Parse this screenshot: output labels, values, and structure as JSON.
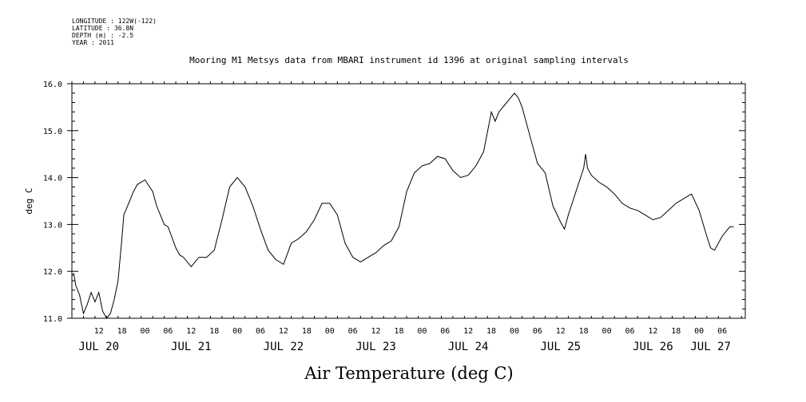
{
  "chart_data": {
    "type": "line",
    "title": "Mooring M1 Metsys data from MBARI instrument id 1396 at original sampling intervals",
    "metadata_lines": [
      "LONGITUDE : 122W(-122)",
      "LATITUDE : 36.8N",
      "DEPTH (m) : -2.5",
      "YEAR : 2011"
    ],
    "xlabel": "Air Temperature (deg C)",
    "ylabel": "deg C",
    "xlim": [
      "2011-07-20 05:00",
      "2011-07-27 12:00"
    ],
    "ylim": [
      11.0,
      16.0
    ],
    "y_ticks": [
      "11.0",
      "12.0",
      "13.0",
      "14.0",
      "15.0",
      "16.0"
    ],
    "x_hour_labels": [
      {
        "t": "2011-07-20 12:00",
        "label": "12"
      },
      {
        "t": "2011-07-20 18:00",
        "label": "18"
      },
      {
        "t": "2011-07-21 00:00",
        "label": "00"
      },
      {
        "t": "2011-07-21 06:00",
        "label": "06"
      },
      {
        "t": "2011-07-21 12:00",
        "label": "12"
      },
      {
        "t": "2011-07-21 18:00",
        "label": "18"
      },
      {
        "t": "2011-07-22 00:00",
        "label": "00"
      },
      {
        "t": "2011-07-22 06:00",
        "label": "06"
      },
      {
        "t": "2011-07-22 12:00",
        "label": "12"
      },
      {
        "t": "2011-07-22 18:00",
        "label": "18"
      },
      {
        "t": "2011-07-23 00:00",
        "label": "00"
      },
      {
        "t": "2011-07-23 06:00",
        "label": "06"
      },
      {
        "t": "2011-07-23 12:00",
        "label": "12"
      },
      {
        "t": "2011-07-23 18:00",
        "label": "18"
      },
      {
        "t": "2011-07-24 00:00",
        "label": "00"
      },
      {
        "t": "2011-07-24 06:00",
        "label": "06"
      },
      {
        "t": "2011-07-24 12:00",
        "label": "12"
      },
      {
        "t": "2011-07-24 18:00",
        "label": "18"
      },
      {
        "t": "2011-07-25 00:00",
        "label": "00"
      },
      {
        "t": "2011-07-25 06:00",
        "label": "06"
      },
      {
        "t": "2011-07-25 12:00",
        "label": "12"
      },
      {
        "t": "2011-07-25 18:00",
        "label": "18"
      },
      {
        "t": "2011-07-26 00:00",
        "label": "00"
      },
      {
        "t": "2011-07-26 06:00",
        "label": "06"
      },
      {
        "t": "2011-07-26 12:00",
        "label": "12"
      },
      {
        "t": "2011-07-26 18:00",
        "label": "18"
      },
      {
        "t": "2011-07-27 00:00",
        "label": "00"
      },
      {
        "t": "2011-07-27 06:00",
        "label": "06"
      }
    ],
    "x_day_labels": [
      {
        "t": "2011-07-20 12:00",
        "label": "JUL 20"
      },
      {
        "t": "2011-07-21 12:00",
        "label": "JUL 21"
      },
      {
        "t": "2011-07-22 12:00",
        "label": "JUL 22"
      },
      {
        "t": "2011-07-23 12:00",
        "label": "JUL 23"
      },
      {
        "t": "2011-07-24 12:00",
        "label": "JUL 24"
      },
      {
        "t": "2011-07-25 12:00",
        "label": "JUL 25"
      },
      {
        "t": "2011-07-26 12:00",
        "label": "JUL 26"
      },
      {
        "t": "2011-07-27 03:00",
        "label": "JUL 27"
      }
    ],
    "series": [
      {
        "x": [
          "2011-07-20 05:00",
          "2011-07-20 05:30",
          "2011-07-20 06:00",
          "2011-07-20 07:00",
          "2011-07-20 07:30",
          "2011-07-20 08:00",
          "2011-07-20 09:00",
          "2011-07-20 10:00",
          "2011-07-20 11:00",
          "2011-07-20 12:00",
          "2011-07-20 13:00",
          "2011-07-20 14:00",
          "2011-07-20 15:00",
          "2011-07-20 16:00",
          "2011-07-20 17:00",
          "2011-07-20 18:00",
          "2011-07-20 18:30",
          "2011-07-20 19:00",
          "2011-07-20 20:00",
          "2011-07-20 21:00",
          "2011-07-20 22:00",
          "2011-07-21 00:00",
          "2011-07-21 02:00",
          "2011-07-21 03:00",
          "2011-07-21 04:00",
          "2011-07-21 05:00",
          "2011-07-21 06:00",
          "2011-07-21 08:00",
          "2011-07-21 09:00",
          "2011-07-21 10:00",
          "2011-07-21 12:00",
          "2011-07-21 14:00",
          "2011-07-21 16:00",
          "2011-07-21 18:00",
          "2011-07-21 20:00",
          "2011-07-21 22:00",
          "2011-07-22 00:00",
          "2011-07-22 02:00",
          "2011-07-22 04:00",
          "2011-07-22 06:00",
          "2011-07-22 08:00",
          "2011-07-22 10:00",
          "2011-07-22 12:00",
          "2011-07-22 14:00",
          "2011-07-22 16:00",
          "2011-07-22 18:00",
          "2011-07-22 20:00",
          "2011-07-22 22:00",
          "2011-07-23 00:00",
          "2011-07-23 02:00",
          "2011-07-23 04:00",
          "2011-07-23 06:00",
          "2011-07-23 08:00",
          "2011-07-23 10:00",
          "2011-07-23 12:00",
          "2011-07-23 14:00",
          "2011-07-23 16:00",
          "2011-07-23 18:00",
          "2011-07-23 20:00",
          "2011-07-23 22:00",
          "2011-07-24 00:00",
          "2011-07-24 02:00",
          "2011-07-24 04:00",
          "2011-07-24 06:00",
          "2011-07-24 08:00",
          "2011-07-24 10:00",
          "2011-07-24 12:00",
          "2011-07-24 14:00",
          "2011-07-24 16:00",
          "2011-07-24 18:00",
          "2011-07-24 19:00",
          "2011-07-24 20:00",
          "2011-07-24 22:00",
          "2011-07-25 00:00",
          "2011-07-25 01:00",
          "2011-07-25 02:00",
          "2011-07-25 04:00",
          "2011-07-25 06:00",
          "2011-07-25 08:00",
          "2011-07-25 10:00",
          "2011-07-25 12:00",
          "2011-07-25 13:00",
          "2011-07-25 14:00",
          "2011-07-25 16:00",
          "2011-07-25 18:00",
          "2011-07-25 18:30",
          "2011-07-25 19:00",
          "2011-07-25 20:00",
          "2011-07-25 22:00",
          "2011-07-26 00:00",
          "2011-07-26 02:00",
          "2011-07-26 04:00",
          "2011-07-26 06:00",
          "2011-07-26 08:00",
          "2011-07-26 10:00",
          "2011-07-26 12:00",
          "2011-07-26 14:00",
          "2011-07-26 16:00",
          "2011-07-26 18:00",
          "2011-07-26 20:00",
          "2011-07-26 22:00",
          "2011-07-27 00:00",
          "2011-07-27 02:00",
          "2011-07-27 03:00",
          "2011-07-27 04:00",
          "2011-07-27 06:00",
          "2011-07-27 07:00",
          "2011-07-27 08:00",
          "2011-07-27 09:00"
        ],
        "y": [
          11.9,
          11.95,
          11.7,
          11.5,
          11.3,
          11.1,
          11.3,
          11.55,
          11.35,
          11.55,
          11.15,
          11.0,
          11.1,
          11.4,
          11.8,
          12.7,
          13.2,
          13.3,
          13.5,
          13.7,
          13.85,
          13.95,
          13.7,
          13.4,
          13.2,
          13.0,
          12.95,
          12.5,
          12.35,
          12.3,
          12.1,
          12.3,
          12.3,
          12.45,
          13.1,
          13.8,
          14.0,
          13.8,
          13.4,
          12.9,
          12.45,
          12.25,
          12.15,
          12.6,
          12.7,
          12.85,
          13.1,
          13.45,
          13.45,
          13.2,
          12.6,
          12.3,
          12.2,
          12.3,
          12.4,
          12.55,
          12.65,
          12.95,
          13.7,
          14.1,
          14.25,
          14.3,
          14.45,
          14.4,
          14.15,
          14.0,
          14.05,
          14.25,
          14.55,
          15.4,
          15.2,
          15.4,
          15.6,
          15.8,
          15.7,
          15.5,
          14.9,
          14.3,
          14.1,
          13.4,
          13.05,
          12.9,
          13.2,
          13.7,
          14.2,
          14.5,
          14.2,
          14.05,
          13.9,
          13.8,
          13.65,
          13.45,
          13.35,
          13.3,
          13.2,
          13.1,
          13.15,
          13.3,
          13.45,
          13.55,
          13.65,
          13.3,
          12.75,
          12.5,
          12.45,
          12.75,
          12.85,
          12.95,
          12.95
        ]
      }
    ]
  }
}
